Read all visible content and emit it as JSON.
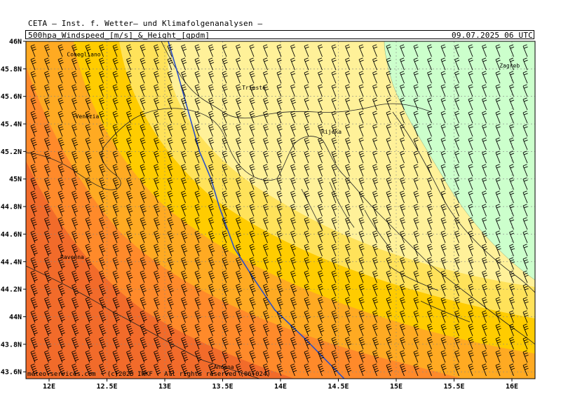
{
  "header": {
    "title": "CETA – Inst. f. Wetter– und Klimafolgenanalysen –",
    "subtitle": "500hpa_Windspeed_[m/s]_&_Height_[gpdm]",
    "datetime": "09.07.2025 06 UTC"
  },
  "axes": {
    "lat_labels": [
      "46N",
      "45.8N",
      "45.6N",
      "45.4N",
      "45.2N",
      "45N",
      "44.8N",
      "44.6N",
      "44.4N",
      "44.2N",
      "44N",
      "43.8N",
      "43.6N"
    ],
    "lon_labels": [
      "12E",
      "12.5E",
      "13E",
      "13.5E",
      "14E",
      "14.5E",
      "15E",
      "15.5E",
      "16E"
    ],
    "lat_values": [
      46,
      45.8,
      45.6,
      45.4,
      45.2,
      45,
      44.8,
      44.6,
      44.4,
      44.2,
      44,
      43.8,
      43.6
    ],
    "lon_values": [
      12,
      12.5,
      13,
      13.5,
      14,
      14.5,
      15,
      15.5,
      16
    ],
    "lat_range": [
      43.55,
      46
    ],
    "lon_range": [
      11.8,
      16.2
    ]
  },
  "cities": [
    {
      "name": "Conegliano",
      "lon": 12.3,
      "lat": 45.89
    },
    {
      "name": "Venezia",
      "lon": 12.33,
      "lat": 45.44
    },
    {
      "name": "Trieste",
      "lon": 13.77,
      "lat": 45.65
    },
    {
      "name": "Rijeka",
      "lon": 14.44,
      "lat": 45.33
    },
    {
      "name": "Zagreb",
      "lon": 15.98,
      "lat": 45.81
    },
    {
      "name": "Ravenna",
      "lon": 12.2,
      "lat": 44.42
    },
    {
      "name": "Ancona",
      "lon": 13.51,
      "lat": 43.62
    }
  ],
  "contour": {
    "label": "height isoline",
    "color": "#2a4fc7",
    "points": [
      [
        13.03,
        46.0
      ],
      [
        13.1,
        45.8
      ],
      [
        13.2,
        45.5
      ],
      [
        13.3,
        45.2
      ],
      [
        13.4,
        45.0
      ],
      [
        13.47,
        44.8
      ],
      [
        13.6,
        44.5
      ],
      [
        13.75,
        44.3
      ],
      [
        13.95,
        44.05
      ],
      [
        14.2,
        43.85
      ],
      [
        14.55,
        43.55
      ]
    ]
  },
  "wind_color_bands": [
    {
      "label": "light green",
      "color": "#ccffcc"
    },
    {
      "label": "light yellow",
      "color": "#fff199"
    },
    {
      "label": "yellow",
      "color": "#ffe25a"
    },
    {
      "label": "gold",
      "color": "#ffcc00"
    },
    {
      "label": "orange",
      "color": "#ffaa22"
    },
    {
      "label": "dark orange",
      "color": "#ff8a2a"
    },
    {
      "label": "red orange",
      "color": "#f26b2a"
    }
  ],
  "credit": "meteo-services.com · (c)2025 IWKF · All rights reserved (06+024)"
}
